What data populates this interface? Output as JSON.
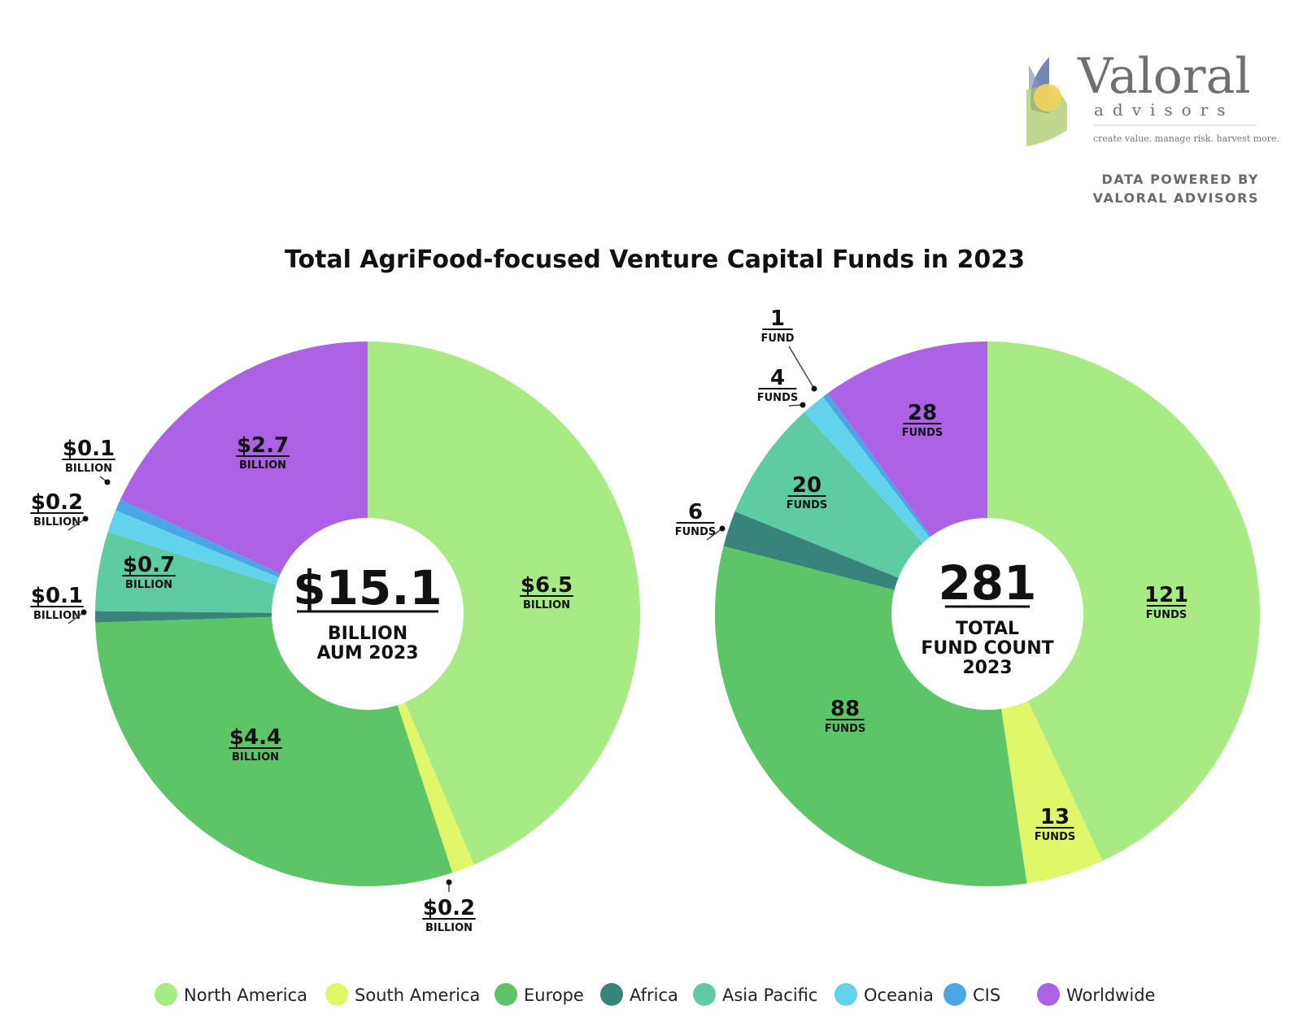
{
  "logo": {
    "name": "Valoral",
    "sub": "advisors",
    "tagline": "create value. manage risk. harvest more."
  },
  "powered_by": [
    "DATA POWERED BY",
    "VALORAL ADVISORS"
  ],
  "title": "Total AgriFood-focused Venture Capital Funds in 2023",
  "colors": {
    "North America": "#a8ea84",
    "South America": "#e0f76a",
    "Europe": "#5dc467",
    "Africa": "#39847a",
    "Asia Pacific": "#5ecba2",
    "Oceania": "#62d3ec",
    "CIS": "#4aa6e4",
    "Worldwide": "#ad62e6"
  },
  "legend": [
    "North America",
    "South America",
    "Europe",
    "Africa",
    "Asia Pacific",
    "Oceania",
    "CIS",
    "Worldwide"
  ],
  "chart_data": [
    {
      "type": "pie",
      "title": "Total AgriFood-focused Venture Capital Funds in 2023",
      "metric": "AUM (billion USD)",
      "categories": [
        "North America",
        "South America",
        "Europe",
        "Africa",
        "Asia Pacific",
        "Oceania",
        "CIS",
        "Worldwide"
      ],
      "values": [
        6.5,
        0.2,
        4.4,
        0.1,
        0.7,
        0.2,
        0.1,
        2.7
      ],
      "labels": [
        "$6.5",
        "$0.2",
        "$4.4",
        "$0.1",
        "$0.7",
        "$0.2",
        "$0.1",
        "$2.7"
      ],
      "unit_label": "BILLION",
      "center": {
        "big": "$15.1",
        "lines": [
          "BILLION",
          "AUM 2023"
        ]
      }
    },
    {
      "type": "pie",
      "title": "Total AgriFood-focused Venture Capital Funds in 2023",
      "metric": "Fund count",
      "categories": [
        "North America",
        "South America",
        "Europe",
        "Africa",
        "Asia Pacific",
        "Oceania",
        "CIS",
        "Worldwide"
      ],
      "values": [
        121,
        13,
        88,
        6,
        20,
        4,
        1,
        28
      ],
      "labels": [
        "121",
        "13",
        "88",
        "6",
        "20",
        "4",
        "1",
        "28"
      ],
      "unit_labels": [
        "FUNDS",
        "FUNDS",
        "FUNDS",
        "FUNDS",
        "FUNDS",
        "FUNDS",
        "FUND",
        "FUNDS"
      ],
      "center": {
        "big": "281",
        "lines": [
          "TOTAL",
          "FUND COUNT",
          "2023"
        ]
      }
    }
  ]
}
